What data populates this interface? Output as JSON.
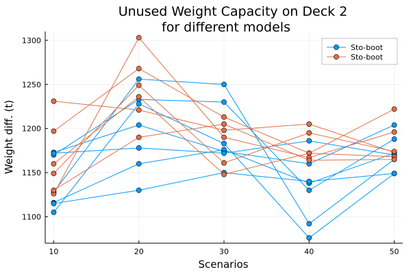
{
  "chart_data": {
    "type": "line",
    "title_lines": [
      "Unused Weight Capacity on Deck 2",
      "for different models"
    ],
    "xlabel": "Scenarios",
    "ylabel": "Weight diff. (t)",
    "x": [
      10,
      20,
      30,
      40,
      50
    ],
    "x_ticks": [
      10,
      20,
      30,
      40,
      50
    ],
    "y_ticks": [
      1100,
      1150,
      1200,
      1250,
      1300
    ],
    "xlim": [
      9,
      51
    ],
    "ylim": [
      1070,
      1310
    ],
    "grid": true,
    "legend_position": "top-right",
    "colors": {
      "blue": "#009AFA",
      "orange": "#E26F46"
    },
    "series": [
      {
        "name": "Sto-boot",
        "color": "#009AFA",
        "values": [
          1173,
          1204,
          1174,
          1160,
          1204
        ]
      },
      {
        "name": "Sto-boot",
        "color": "#E26F46",
        "values": [
          1231,
          1221,
          1198,
          1205,
          1173
        ]
      }
    ],
    "extra_series": [
      {
        "color": "#009AFA",
        "values": [
          1170,
          1233,
          1230,
          1130,
          1188
        ]
      },
      {
        "color": "#009AFA",
        "values": [
          1128,
          1256,
          1250,
          1092,
          1165
        ]
      },
      {
        "color": "#009AFA",
        "values": [
          1116,
          1160,
          1176,
          1138,
          1172
        ]
      },
      {
        "color": "#009AFA",
        "values": [
          1105,
          1228,
          1183,
          1076,
          1149
        ]
      },
      {
        "color": "#009AFA",
        "values": [
          1172,
          1178,
          1172,
          1186,
          1170
        ]
      },
      {
        "color": "#009AFA",
        "values": [
          1115,
          1130,
          1150,
          1140,
          1149
        ]
      },
      {
        "color": "#E26F46",
        "values": [
          1197,
          1268,
          1213,
          1172,
          1222
        ]
      },
      {
        "color": "#E26F46",
        "values": [
          1160,
          1236,
          1148,
          1172,
          1168
        ]
      },
      {
        "color": "#E26F46",
        "values": [
          1126,
          1303,
          1190,
          1167,
          1196
        ]
      },
      {
        "color": "#E26F46",
        "values": [
          1149,
          1249,
          1161,
          1195,
          1174
        ]
      },
      {
        "color": "#E26F46",
        "values": [
          1130,
          1190,
          1205,
          1164,
          1165
        ]
      }
    ]
  }
}
